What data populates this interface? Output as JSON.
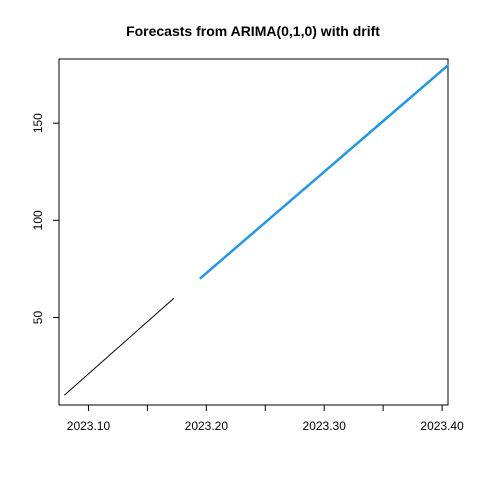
{
  "chart_data": {
    "type": "line",
    "title": "Forecasts from ARIMA(0,1,0) with drift",
    "xlabel": "",
    "ylabel": "",
    "xlim": [
      2023.075,
      2023.405
    ],
    "ylim": [
      5,
      183
    ],
    "x_ticks": [
      {
        "value": 2023.1,
        "label": "2023.10"
      },
      {
        "value": 2023.15,
        "label": ""
      },
      {
        "value": 2023.2,
        "label": "2023.20"
      },
      {
        "value": 2023.25,
        "label": ""
      },
      {
        "value": 2023.3,
        "label": "2023.30"
      },
      {
        "value": 2023.35,
        "label": ""
      },
      {
        "value": 2023.4,
        "label": "2023.40"
      }
    ],
    "y_ticks": [
      {
        "value": 50,
        "label": "50"
      },
      {
        "value": 100,
        "label": "100"
      },
      {
        "value": 150,
        "label": "150"
      }
    ],
    "grid": false,
    "series": [
      {
        "role": "observed",
        "color": "#000000",
        "x": [
          2023.0795,
          2023.1726
        ],
        "y": [
          10,
          60
        ]
      },
      {
        "role": "forecast",
        "color": "#2297E6",
        "x": [
          2023.1945,
          2023.4055
        ],
        "y": [
          70,
          180
        ]
      }
    ]
  }
}
